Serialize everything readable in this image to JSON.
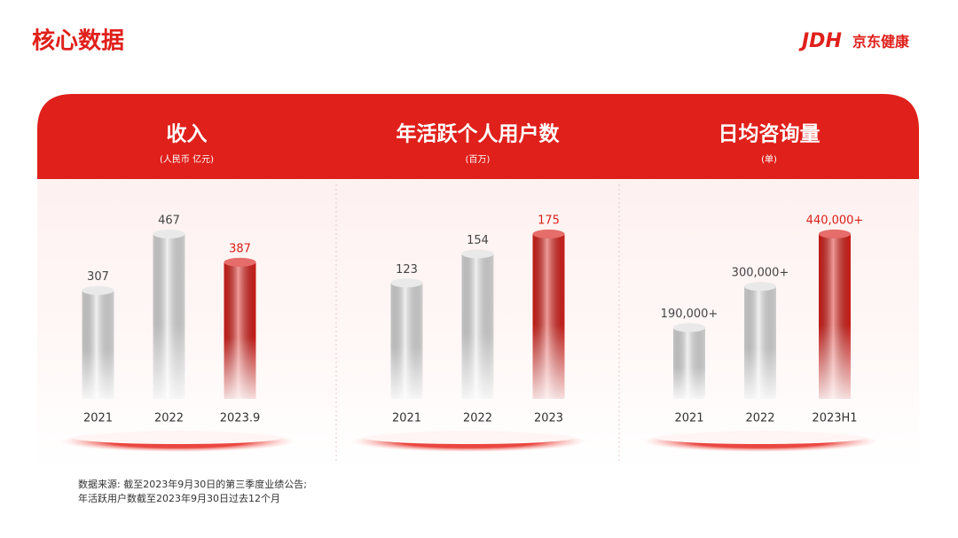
{
  "header": {
    "title": "核心数据",
    "logo_mark": "JDH",
    "logo_text": "京东健康"
  },
  "chart_data": [
    {
      "type": "bar",
      "title": "收入",
      "subtitle": "(人民币 亿元)",
      "categories": [
        "2021",
        "2022",
        "2023.9"
      ],
      "values": [
        307,
        467,
        387
      ],
      "colors": [
        "#dedede",
        "#dedede",
        "#d9201a"
      ],
      "value_label_colors": [
        "#444444",
        "#444444",
        "#d9201a"
      ]
    },
    {
      "type": "bar",
      "title": "年活跃个人用户数",
      "subtitle": "(百万)",
      "categories": [
        "2021",
        "2022",
        "2023"
      ],
      "values": [
        123,
        154,
        175
      ],
      "colors": [
        "#dedede",
        "#dedede",
        "#d9201a"
      ],
      "value_label_colors": [
        "#444444",
        "#444444",
        "#d9201a"
      ]
    },
    {
      "type": "bar",
      "title": "日均咨询量",
      "subtitle": "(单)",
      "categories": [
        "2021",
        "2022",
        "2023H1"
      ],
      "values": [
        190000,
        300000,
        440000
      ],
      "value_labels": [
        "190,000+",
        "300,000+",
        "440,000+"
      ],
      "colors": [
        "#dedede",
        "#dedede",
        "#d9201a"
      ],
      "value_label_colors": [
        "#444444",
        "#444444",
        "#d9201a"
      ]
    }
  ],
  "footnote": [
    "数据来源: 截至2023年9月30日的第三季度业绩公告;",
    "年活跃用户数截至2023年9月30日过去12个月"
  ]
}
